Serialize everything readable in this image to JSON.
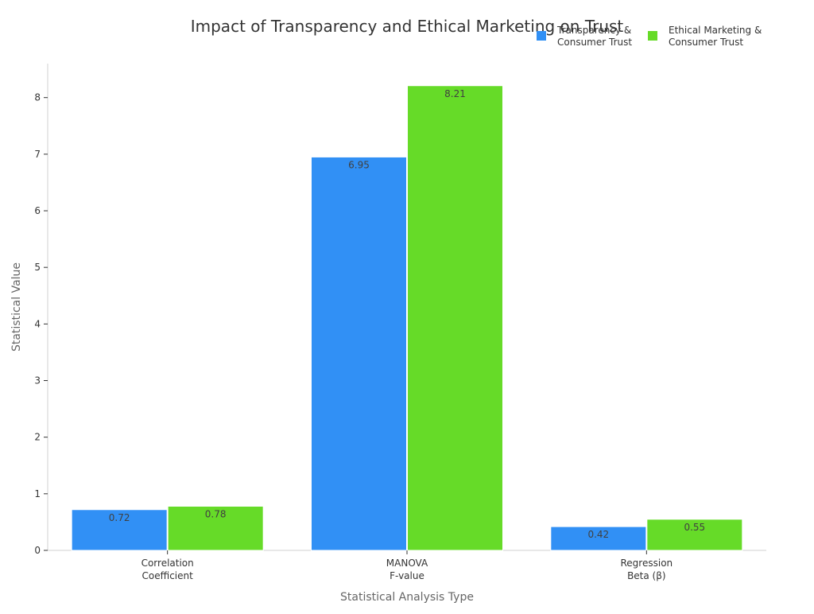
{
  "chart_data": {
    "type": "bar",
    "title": "Impact of Transparency and Ethical Marketing on Trust",
    "xlabel": "Statistical Analysis Type",
    "ylabel": "Statistical Value",
    "categories": [
      [
        "Correlation",
        "Coefficient"
      ],
      [
        "MANOVA",
        "F-value"
      ],
      [
        "Regression",
        "Beta (β)"
      ]
    ],
    "series": [
      {
        "name": [
          "Transparency &",
          "Consumer Trust"
        ],
        "color": "#3190f5",
        "values": [
          0.72,
          6.95,
          0.42
        ],
        "value_labels": [
          "0.72",
          "6.95",
          "0.42"
        ]
      },
      {
        "name": [
          "Ethical Marketing &",
          "Consumer Trust"
        ],
        "color": "#66db28",
        "values": [
          0.78,
          8.21,
          0.55
        ],
        "value_labels": [
          "0.78",
          "8.21",
          "0.55"
        ]
      }
    ],
    "yticks": [
      "0",
      "1",
      "2",
      "3",
      "4",
      "5",
      "6",
      "7",
      "8"
    ],
    "ylim": [
      0,
      8.6
    ],
    "grid": false,
    "legend_position": "top-right"
  }
}
